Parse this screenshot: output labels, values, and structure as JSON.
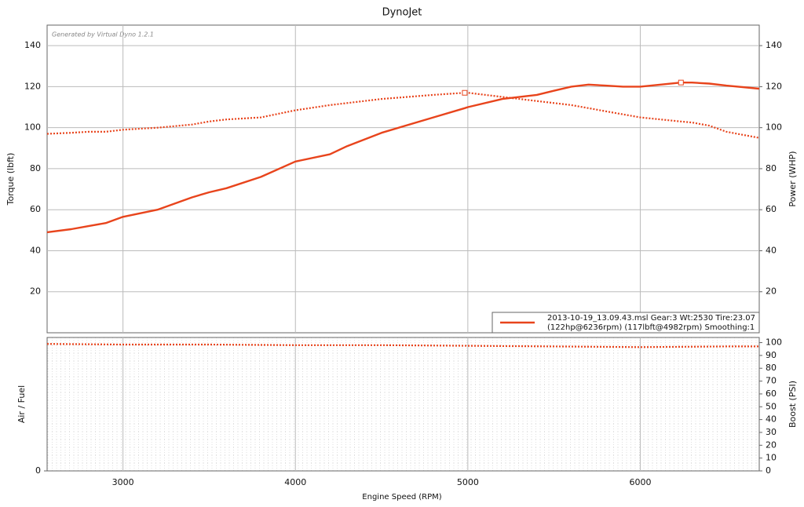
{
  "chart_data": [
    {
      "type": "line",
      "title": "DynoJet",
      "watermark": "Generated by Virtual Dyno 1.2.1",
      "ylabel": "Torque (lbft)",
      "y2label": "Power (WHP)",
      "xlim": [
        2560,
        6690
      ],
      "xticks": [
        3000,
        4000,
        5000,
        6000
      ],
      "ylim": [
        0,
        150
      ],
      "yticks": [
        20,
        40,
        60,
        80,
        100,
        120,
        140
      ],
      "y2lim": [
        0,
        150
      ],
      "y2ticks": [
        20,
        40,
        60,
        80,
        100,
        120,
        140
      ],
      "grid": true,
      "x": [
        2560,
        2700,
        2800,
        2900,
        3000,
        3200,
        3400,
        3500,
        3600,
        3800,
        4000,
        4200,
        4300,
        4500,
        4800,
        4982,
        5000,
        5200,
        5400,
        5500,
        5600,
        5700,
        5800,
        5900,
        6000,
        6236,
        6300,
        6400,
        6500,
        6690
      ],
      "series": [
        {
          "color": "#e8441c",
          "style": "dotted",
          "values": [
            97,
            97.5,
            98,
            98,
            99,
            100,
            101.5,
            103,
            104,
            105,
            108.5,
            111,
            112,
            114,
            116,
            117,
            117,
            115,
            113,
            112,
            111,
            109.5,
            108,
            106.5,
            105,
            103,
            102.5,
            101,
            98,
            95
          ]
        },
        {
          "color": "#e8441c",
          "style": "solid",
          "axis": "y2",
          "values": [
            49,
            50.5,
            52,
            53.5,
            56.5,
            60,
            66,
            68.5,
            70.5,
            76,
            83.5,
            87,
            91,
            97.5,
            105,
            109.5,
            110,
            114,
            116,
            118,
            120,
            121,
            120.5,
            120,
            120,
            122,
            122,
            121.5,
            120.5,
            119
          ]
        }
      ],
      "legend": {
        "position": "lower right",
        "color": "#e8441c",
        "lines": [
          "2013-10-19_13.09.43.msl Gear:3 Wt:2530 Tire:23.07",
          "(122hp@6236rpm) (117lbft@4982rpm) Smoothing:1"
        ]
      }
    },
    {
      "type": "line",
      "xlabel": "Engine Speed (RPM)",
      "ylabel": "Air / Fuel",
      "y2label": "Boost (PSI)",
      "xlim": [
        2560,
        6690
      ],
      "xticks": [
        3000,
        4000,
        5000,
        6000
      ],
      "ylim": [
        0,
        104
      ],
      "yticks": [
        0
      ],
      "y2lim": [
        0,
        104
      ],
      "y2ticks": [
        0,
        10,
        20,
        30,
        40,
        50,
        60,
        70,
        80,
        90,
        100
      ],
      "x": [
        2560,
        3000,
        3500,
        4000,
        4500,
        5000,
        5500,
        6000,
        6500,
        6690
      ],
      "series": [
        {
          "color": "#e8441c",
          "style": "dotted",
          "axis": "y2",
          "values": [
            99,
            98.5,
            98.5,
            98,
            98,
            97.5,
            97,
            96.5,
            97,
            97
          ]
        }
      ]
    }
  ]
}
